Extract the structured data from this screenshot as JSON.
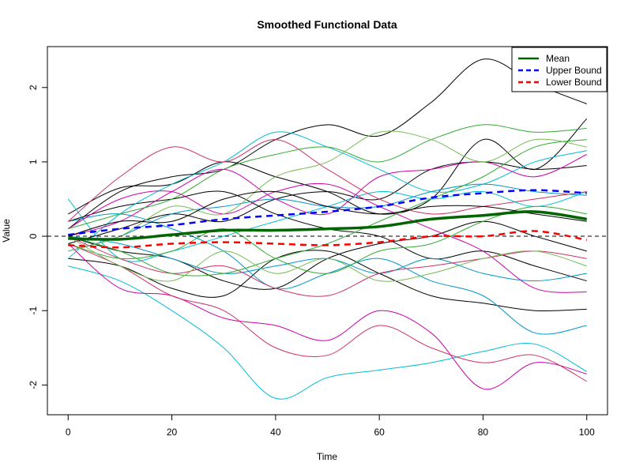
{
  "chart_data": {
    "type": "line",
    "title": "Smoothed Functional Data",
    "xlabel": "Time",
    "ylabel": "Value",
    "xlim": [
      -4,
      104
    ],
    "ylim": [
      -2.4,
      2.55
    ],
    "x_ticks": [
      0,
      20,
      40,
      60,
      80,
      100
    ],
    "y_ticks": [
      -2,
      -1,
      0,
      1,
      2
    ],
    "grid": false,
    "reference_line": {
      "y": 0,
      "style": "dashed",
      "color": "#000000"
    },
    "legend": {
      "placement": "top-right",
      "entries": [
        {
          "label": "Mean",
          "color": "#006400",
          "style": "solid"
        },
        {
          "label": "Upper Bound",
          "color": "#0000ff",
          "style": "dashed"
        },
        {
          "label": "Lower Bound",
          "color": "#ff0000",
          "style": "dashed"
        }
      ]
    },
    "x": [
      0,
      10,
      20,
      30,
      40,
      50,
      60,
      70,
      80,
      90,
      100
    ],
    "summary_series": [
      {
        "name": "Mean",
        "color": "#006400",
        "style": "solid",
        "values": [
          -0.03,
          -0.04,
          0.02,
          0.08,
          0.08,
          0.1,
          0.13,
          0.23,
          0.28,
          0.33,
          0.23
        ]
      },
      {
        "name": "Upper Bound",
        "color": "#0000ff",
        "style": "dashed",
        "values": [
          0.02,
          0.1,
          0.15,
          0.23,
          0.28,
          0.33,
          0.4,
          0.52,
          0.58,
          0.62,
          0.58
        ]
      },
      {
        "name": "Lower Bound",
        "color": "#ff0000",
        "style": "dashed",
        "values": [
          -0.12,
          -0.15,
          -0.1,
          -0.08,
          -0.1,
          -0.12,
          -0.08,
          0.0,
          0.0,
          0.07,
          -0.05
        ]
      }
    ],
    "curves": [
      {
        "color": "#000000",
        "values": [
          0.1,
          0.6,
          0.8,
          0.9,
          1.3,
          1.5,
          1.35,
          1.8,
          2.38,
          2.05,
          1.78
        ]
      },
      {
        "color": "#000000",
        "values": [
          0.3,
          0.65,
          0.7,
          1.0,
          0.8,
          0.6,
          0.3,
          0.5,
          1.3,
          0.9,
          1.58
        ]
      },
      {
        "color": "#000000",
        "values": [
          -0.3,
          -0.4,
          -0.7,
          -0.8,
          -0.3,
          -0.2,
          -0.5,
          -0.8,
          -0.9,
          -1.0,
          -0.98
        ]
      },
      {
        "color": "#000000",
        "values": [
          0.2,
          0.4,
          0.5,
          0.6,
          0.3,
          0.1,
          0.0,
          -0.3,
          -0.2,
          -0.4,
          -0.6
        ]
      },
      {
        "color": "#000000",
        "values": [
          -0.1,
          0.1,
          0.3,
          0.2,
          0.5,
          0.6,
          0.5,
          0.9,
          1.0,
          0.9,
          0.95
        ]
      },
      {
        "color": "#000000",
        "values": [
          0.0,
          -0.2,
          -0.3,
          -0.6,
          -0.7,
          -0.3,
          -0.1,
          0.0,
          0.2,
          0.0,
          -0.2
        ]
      },
      {
        "color": "#00bcd4",
        "values": [
          -0.3,
          0.3,
          0.7,
          1.0,
          1.4,
          1.2,
          0.9,
          0.6,
          0.7,
          1.0,
          1.15
        ]
      },
      {
        "color": "#00bcd4",
        "values": [
          -0.4,
          -0.6,
          -1.0,
          -1.5,
          -2.18,
          -1.9,
          -1.8,
          -1.7,
          -1.55,
          -1.45,
          -1.82
        ]
      },
      {
        "color": "#00bcd4",
        "values": [
          0.5,
          -0.3,
          -0.2,
          0.0,
          0.2,
          0.4,
          0.6,
          0.5,
          0.6,
          0.4,
          0.6
        ]
      },
      {
        "color": "#0095c8",
        "values": [
          0.2,
          0.3,
          0.1,
          -0.2,
          -0.7,
          -0.5,
          -0.3,
          -0.6,
          -0.8,
          -1.3,
          -1.2
        ]
      },
      {
        "color": "#0095c8",
        "values": [
          -0.2,
          0.0,
          0.3,
          0.4,
          0.5,
          0.4,
          0.4,
          0.6,
          0.7,
          0.6,
          0.55
        ]
      },
      {
        "color": "#0095c8",
        "values": [
          0.0,
          -0.1,
          -0.3,
          -0.5,
          -0.4,
          -0.3,
          -0.5,
          -0.3,
          -0.5,
          -0.6,
          -0.5
        ]
      },
      {
        "color": "#cc00aa",
        "values": [
          -0.1,
          -0.7,
          -0.8,
          -1.1,
          -1.2,
          -1.4,
          -1.0,
          -1.3,
          -2.05,
          -1.7,
          -1.85
        ]
      },
      {
        "color": "#cc00aa",
        "values": [
          0.1,
          0.5,
          0.6,
          0.3,
          0.6,
          0.7,
          0.4,
          0.1,
          -0.2,
          -0.7,
          -0.75
        ]
      },
      {
        "color": "#cc00aa",
        "values": [
          0.0,
          0.2,
          0.6,
          0.9,
          0.5,
          0.3,
          0.8,
          0.9,
          1.0,
          0.8,
          1.1
        ]
      },
      {
        "color": "#cc3366",
        "values": [
          -0.1,
          -0.4,
          -0.8,
          -1.0,
          -1.5,
          -1.6,
          -1.2,
          -1.5,
          -1.7,
          -1.6,
          -1.95
        ]
      },
      {
        "color": "#cc3366",
        "values": [
          0.2,
          0.8,
          1.2,
          1.0,
          1.3,
          0.9,
          0.5,
          0.3,
          0.4,
          0.5,
          0.6
        ]
      },
      {
        "color": "#cc3366",
        "values": [
          0.0,
          -0.3,
          -0.5,
          -0.4,
          -0.7,
          -0.8,
          -0.5,
          -0.4,
          -0.3,
          -0.2,
          -0.3
        ]
      },
      {
        "color": "#33aa33",
        "values": [
          0.0,
          -0.2,
          -0.5,
          -0.5,
          -0.3,
          -0.1,
          0.2,
          0.5,
          0.8,
          1.2,
          1.3
        ]
      },
      {
        "color": "#33aa33",
        "values": [
          0.1,
          0.3,
          0.5,
          0.9,
          1.1,
          1.2,
          1.0,
          1.3,
          1.5,
          1.4,
          1.45
        ]
      },
      {
        "color": "#33aa33",
        "values": [
          -0.1,
          -0.3,
          -0.2,
          0.1,
          -0.3,
          -0.5,
          -0.2,
          -0.1,
          0.2,
          0.4,
          0.3
        ]
      },
      {
        "color": "#77bb55",
        "values": [
          -0.2,
          0.0,
          0.4,
          0.3,
          0.8,
          1.0,
          1.4,
          1.3,
          1.0,
          1.3,
          1.2
        ]
      },
      {
        "color": "#77bb55",
        "values": [
          0.0,
          -0.4,
          -0.6,
          -0.2,
          -0.5,
          -0.3,
          -0.6,
          -0.5,
          -0.3,
          -0.2,
          -0.4
        ]
      },
      {
        "color": "#000000",
        "values": [
          0.0,
          0.2,
          0.2,
          0.5,
          0.6,
          0.4,
          0.3,
          0.4,
          0.4,
          0.3,
          0.2
        ]
      }
    ]
  }
}
